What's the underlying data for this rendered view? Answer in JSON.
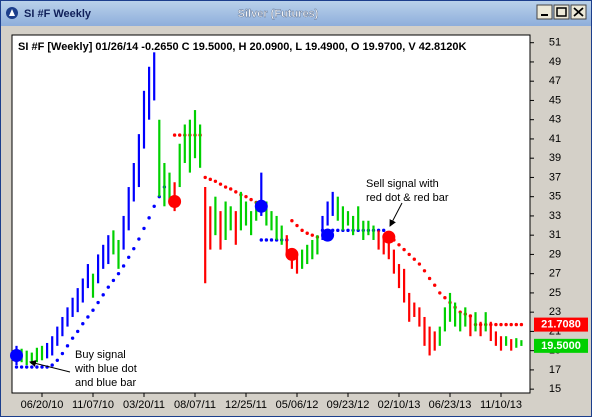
{
  "window": {
    "title": "SI #F Weekly",
    "heading": "Silver (Futures)"
  },
  "chart_data": {
    "type": "ohlc",
    "legend_text": "SI #F [Weekly] 01/26/14 -0.2650 C 19.5000, H 20.0900, L 19.4900, O 19.9700, V 42.8120K",
    "categories": [
      null,
      null,
      null,
      null,
      null,
      "06/20/10",
      null,
      null,
      null,
      null,
      null,
      null,
      null,
      null,
      null,
      "11/07/10",
      null,
      null,
      null,
      null,
      null,
      null,
      null,
      null,
      null,
      "03/20/11",
      null,
      null,
      null,
      null,
      null,
      null,
      null,
      null,
      null,
      "08/07/11",
      null,
      null,
      null,
      null,
      null,
      null,
      null,
      null,
      null,
      "12/25/11",
      null,
      null,
      null,
      null,
      null,
      null,
      null,
      null,
      null,
      "05/06/12",
      null,
      null,
      null,
      null,
      null,
      null,
      null,
      null,
      null,
      "09/23/12",
      null,
      null,
      null,
      null,
      null,
      null,
      null,
      null,
      null,
      "02/10/13",
      null,
      null,
      null,
      null,
      null,
      null,
      null,
      null,
      null,
      "06/23/13",
      null,
      null,
      null,
      null,
      null,
      null,
      null,
      null,
      null,
      "11/10/13",
      null,
      null,
      null,
      null
    ],
    "low": [
      17.5,
      17.8,
      17.5,
      17.6,
      17.8,
      18.0,
      18.2,
      18.5,
      19.5,
      20.5,
      21.5,
      22.5,
      23.0,
      24.0,
      25.5,
      24.5,
      26.0,
      27.5,
      28.0,
      29.0,
      27.5,
      29.5,
      31.5,
      34.5,
      36.0,
      40.0,
      43.0,
      45.0,
      35.0,
      34.0,
      34.5,
      33.5,
      36.0,
      38.5,
      37.5,
      39.0,
      38.0,
      26.0,
      29.5,
      31.0,
      29.5,
      30.5,
      31.5,
      30.0,
      31.5,
      32.0,
      31.0,
      32.5,
      33.0,
      32.0,
      31.5,
      30.5,
      30.0,
      29.0,
      27.5,
      27.0,
      27.5,
      28.0,
      28.5,
      29.0,
      30.5,
      32.0,
      33.0,
      32.5,
      31.5,
      32.0,
      31.0,
      31.5,
      30.5,
      31.0,
      30.5,
      29.5,
      29.0,
      28.5,
      27.0,
      25.5,
      24.0,
      22.0,
      22.5,
      21.5,
      19.5,
      18.5,
      19.0,
      19.5,
      21.0,
      22.0,
      21.5,
      21.0,
      21.5,
      20.5,
      21.0,
      20.5,
      21.0,
      20.0,
      19.5,
      19.0,
      19.5,
      19.0,
      19.3,
      19.49
    ],
    "high": [
      19.5,
      19.2,
      19.0,
      18.8,
      19.3,
      19.5,
      19.8,
      20.5,
      21.5,
      22.5,
      23.5,
      24.5,
      25.5,
      26.5,
      28.0,
      27.0,
      29.0,
      30.0,
      31.0,
      31.5,
      30.5,
      33.0,
      36.0,
      38.5,
      41.5,
      46.0,
      48.5,
      50.0,
      43.0,
      38.5,
      37.5,
      36.5,
      40.5,
      42.5,
      43.0,
      44.0,
      42.5,
      36.0,
      34.0,
      35.0,
      33.5,
      34.5,
      34.0,
      33.5,
      35.5,
      34.5,
      33.5,
      34.5,
      37.5,
      34.5,
      33.5,
      33.0,
      32.0,
      31.0,
      29.5,
      29.0,
      29.5,
      30.0,
      30.5,
      31.0,
      33.0,
      34.5,
      35.5,
      35.0,
      34.0,
      33.5,
      33.0,
      34.0,
      32.5,
      32.5,
      32.0,
      31.5,
      31.0,
      30.5,
      29.5,
      28.0,
      27.5,
      25.0,
      24.0,
      23.5,
      22.5,
      21.5,
      21.0,
      21.5,
      23.5,
      25.0,
      24.0,
      23.0,
      23.5,
      22.5,
      23.0,
      22.0,
      23.0,
      22.0,
      21.0,
      20.5,
      20.5,
      20.2,
      20.3,
      20.09
    ],
    "bar_states": "bgggggbbbbbbbbbgbbbggbbbbbbbgggrgggggrrgrggrggggbggggrrrggggbbbggggggggrrrrrrrrrrrrggggggrgrgrrrgrgg",
    "stop": [
      17.3,
      17.3,
      17.3,
      17.3,
      17.3,
      17.3,
      17.3,
      17.5,
      18,
      18.7,
      19.5,
      20.3,
      21,
      21.8,
      22.5,
      23.2,
      24,
      24.8,
      25.6,
      26.3,
      27,
      27.8,
      28.7,
      29.6,
      30.6,
      31.7,
      32.8,
      34,
      35,
      36,
      null,
      41.4,
      41.4,
      41.4,
      41.4,
      41.4,
      41.4,
      37,
      36.8,
      36.6,
      36.3,
      36,
      35.8,
      35.5,
      35.2,
      35,
      34.7,
      34.4,
      30.5,
      30.5,
      30.5,
      30.5,
      30.5,
      30.5,
      32.5,
      32,
      31.5,
      31.2,
      31,
      30.8,
      31.5,
      31.5,
      31.5,
      31.5,
      31.5,
      31.5,
      31.5,
      31.5,
      31.5,
      31.5,
      31.5,
      31.5,
      31.5,
      31,
      30.5,
      30,
      29.5,
      29,
      28.5,
      28,
      27.3,
      26.5,
      25.8,
      25,
      24.5,
      24,
      23.5,
      23,
      22.8,
      22.6,
      21.708,
      21.708,
      21.708,
      21.708,
      21.708,
      21.708,
      21.708,
      21.708,
      21.708,
      21.708
    ],
    "stop_states": "bbbbbbbbbbbbbbbbbbbbbbbbbbbbbbrrrrrrrrrrrrrrrrrrbbbbbbrrrrrrbbbbbbbbbbbbbrrrrrrrrrrrrrrrrrrrrrrrrrrr",
    "state_colors": {
      "b": "#0000ff",
      "g": "#00d000",
      "r": "#ff0000"
    },
    "signals": [
      {
        "index": 0,
        "value": 18.5,
        "state": "b"
      },
      {
        "index": 31,
        "value": 34.5,
        "state": "r"
      },
      {
        "index": 48,
        "value": 34,
        "state": "b"
      },
      {
        "index": 54,
        "value": 29,
        "state": "r"
      },
      {
        "index": 61,
        "value": 31,
        "state": "b"
      },
      {
        "index": 73,
        "value": 30.8,
        "state": "r"
      }
    ],
    "last_labels": [
      {
        "value": 21.708,
        "label": "21.7080",
        "state": "r"
      },
      {
        "value": 19.5,
        "label": "19.5000",
        "state": "g"
      }
    ],
    "annotations": {
      "buy": [
        "Buy signal",
        "with blue dot",
        "and blue bar"
      ],
      "sell": [
        "Sell signal with",
        "red dot & red bar"
      ]
    },
    "ylim": [
      14.6,
      51.8
    ],
    "yticks": [
      15,
      17,
      19,
      21,
      23,
      25,
      27,
      29,
      31,
      33,
      35,
      37,
      39,
      41,
      43,
      45,
      47,
      49,
      51
    ]
  }
}
